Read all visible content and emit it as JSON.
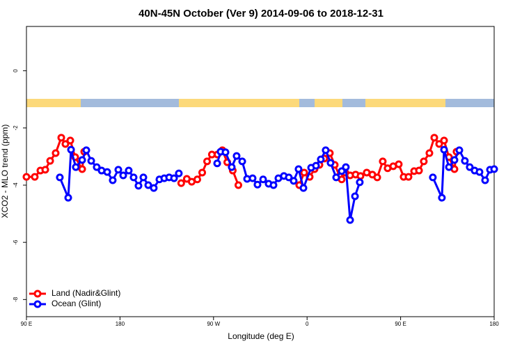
{
  "chart_data": {
    "type": "line",
    "title": "40N-45N October (Ver 9)   2014-09-06 to 2018-12-31",
    "xlabel": "Longitude (deg E)",
    "ylabel": "XCO2 - MLO trend (ppm)",
    "xlim": [
      90,
      540
    ],
    "ylim": [
      -8.6,
      1.55
    ],
    "xticks": [
      {
        "value": 90,
        "label": "90 E"
      },
      180,
      {
        "value": 270,
        "label": "90 W"
      },
      {
        "value": 360,
        "label": "0"
      },
      {
        "value": 450,
        "label": "90 E"
      },
      {
        "value": 540,
        "label": "180"
      }
    ],
    "yticks": [
      0,
      -2,
      -4,
      -6,
      -8
    ],
    "legend": "bottomleft",
    "series": [
      {
        "name": "Land (Nadir&Glint)",
        "color": "#ff0000",
        "x": [
          90,
          98.0,
          103.4,
          108.1,
          112.8,
          118.1,
          123.5,
          127.5,
          132.2,
          136.9,
          143.6,
          145.6,
          190,
          238.9,
          244.3,
          249.0,
          254.4,
          259.1,
          263.8,
          268.4,
          273.8,
          278.5,
          283.2,
          288.5,
          293.9,
          320,
          352.5,
          357.2,
          362.5,
          367.2,
          371.9,
          376.6,
          381.9,
          386.6,
          391.3,
          393.3,
          396.7,
          401.4,
          406.7,
          411.4,
          417.4,
          422.8,
          427.5,
          432.8,
          437.5,
          442.9,
          448.2,
          452.9,
          457.6,
          463.0,
          467.7,
          472.3,
          477.7,
          482.4,
          487.1,
          491.8,
          496.5,
          501.8,
          503.8
        ],
        "values": [
          -3.71,
          -3.71,
          -3.49,
          -3.46,
          -3.15,
          -2.88,
          -2.34,
          -2.56,
          -2.44,
          -3.02,
          -3.44,
          -2.83,
          null,
          -3.93,
          -3.78,
          -3.88,
          -3.8,
          -3.56,
          -3.17,
          -2.93,
          -2.93,
          -2.78,
          -3.2,
          -3.49,
          -4.0,
          null,
          -4.0,
          -3.56,
          -3.71,
          -3.44,
          -3.29,
          -3.07,
          -2.88,
          -3.29,
          -3.68,
          -3.8,
          -3.56,
          -3.66,
          -3.63,
          -3.68,
          -3.56,
          -3.63,
          -3.73,
          -3.17,
          -3.41,
          -3.34,
          -3.27,
          -3.71,
          -3.71,
          -3.51,
          -3.49,
          -3.17,
          -2.88,
          -2.34,
          -2.56,
          -2.44,
          -3.02,
          -3.44,
          -2.83
        ]
      },
      {
        "name": "Ocean (Glint)",
        "color": "#0000ff",
        "x": [
          122.1,
          130.2,
          132.9,
          137.5,
          143.6,
          147.6,
          152.3,
          157.6,
          162.3,
          167.7,
          173.0,
          178.4,
          183.1,
          188.4,
          193.1,
          197.8,
          202.5,
          207.2,
          212.5,
          217.9,
          222.6,
          227.3,
          232.0,
          236.6,
          255,
          273.5,
          276.8,
          281.5,
          287.5,
          292.2,
          297.6,
          302.3,
          307.6,
          312.3,
          317.7,
          323.0,
          327.7,
          332.4,
          337.7,
          342.4,
          347.1,
          351.8,
          356.5,
          363.9,
          368.6,
          373.2,
          377.9,
          382.6,
          388.0,
          393.3,
          397.3,
          401.4,
          406.1,
          410.7,
          450,
          481.0,
          489.7,
          491.8,
          496.5,
          501.8,
          506.5,
          511.8,
          516.5,
          521.2,
          525.9,
          531.3,
          536.0,
          540
        ],
        "values": [
          -3.73,
          -4.44,
          -2.76,
          -3.37,
          -3.12,
          -2.78,
          -3.15,
          -3.37,
          -3.49,
          -3.54,
          -3.83,
          -3.46,
          -3.66,
          -3.49,
          -3.73,
          -4.02,
          -3.73,
          -4.0,
          -4.1,
          -3.8,
          -3.76,
          -3.73,
          -3.76,
          -3.59,
          null,
          -3.24,
          -2.83,
          -2.85,
          -3.37,
          -2.98,
          -3.17,
          -3.78,
          -3.76,
          -3.98,
          -3.8,
          -3.95,
          -4.0,
          -3.76,
          -3.68,
          -3.73,
          -3.85,
          -3.44,
          -4.1,
          -3.39,
          -3.32,
          -3.1,
          -2.78,
          -3.22,
          -3.73,
          -3.51,
          -3.37,
          -5.22,
          -4.39,
          -3.9,
          null,
          -3.73,
          -4.44,
          -2.76,
          -3.37,
          -3.12,
          -2.78,
          -3.15,
          -3.37,
          -3.49,
          -3.54,
          -3.83,
          -3.46,
          -3.44
        ]
      }
    ]
  }
}
